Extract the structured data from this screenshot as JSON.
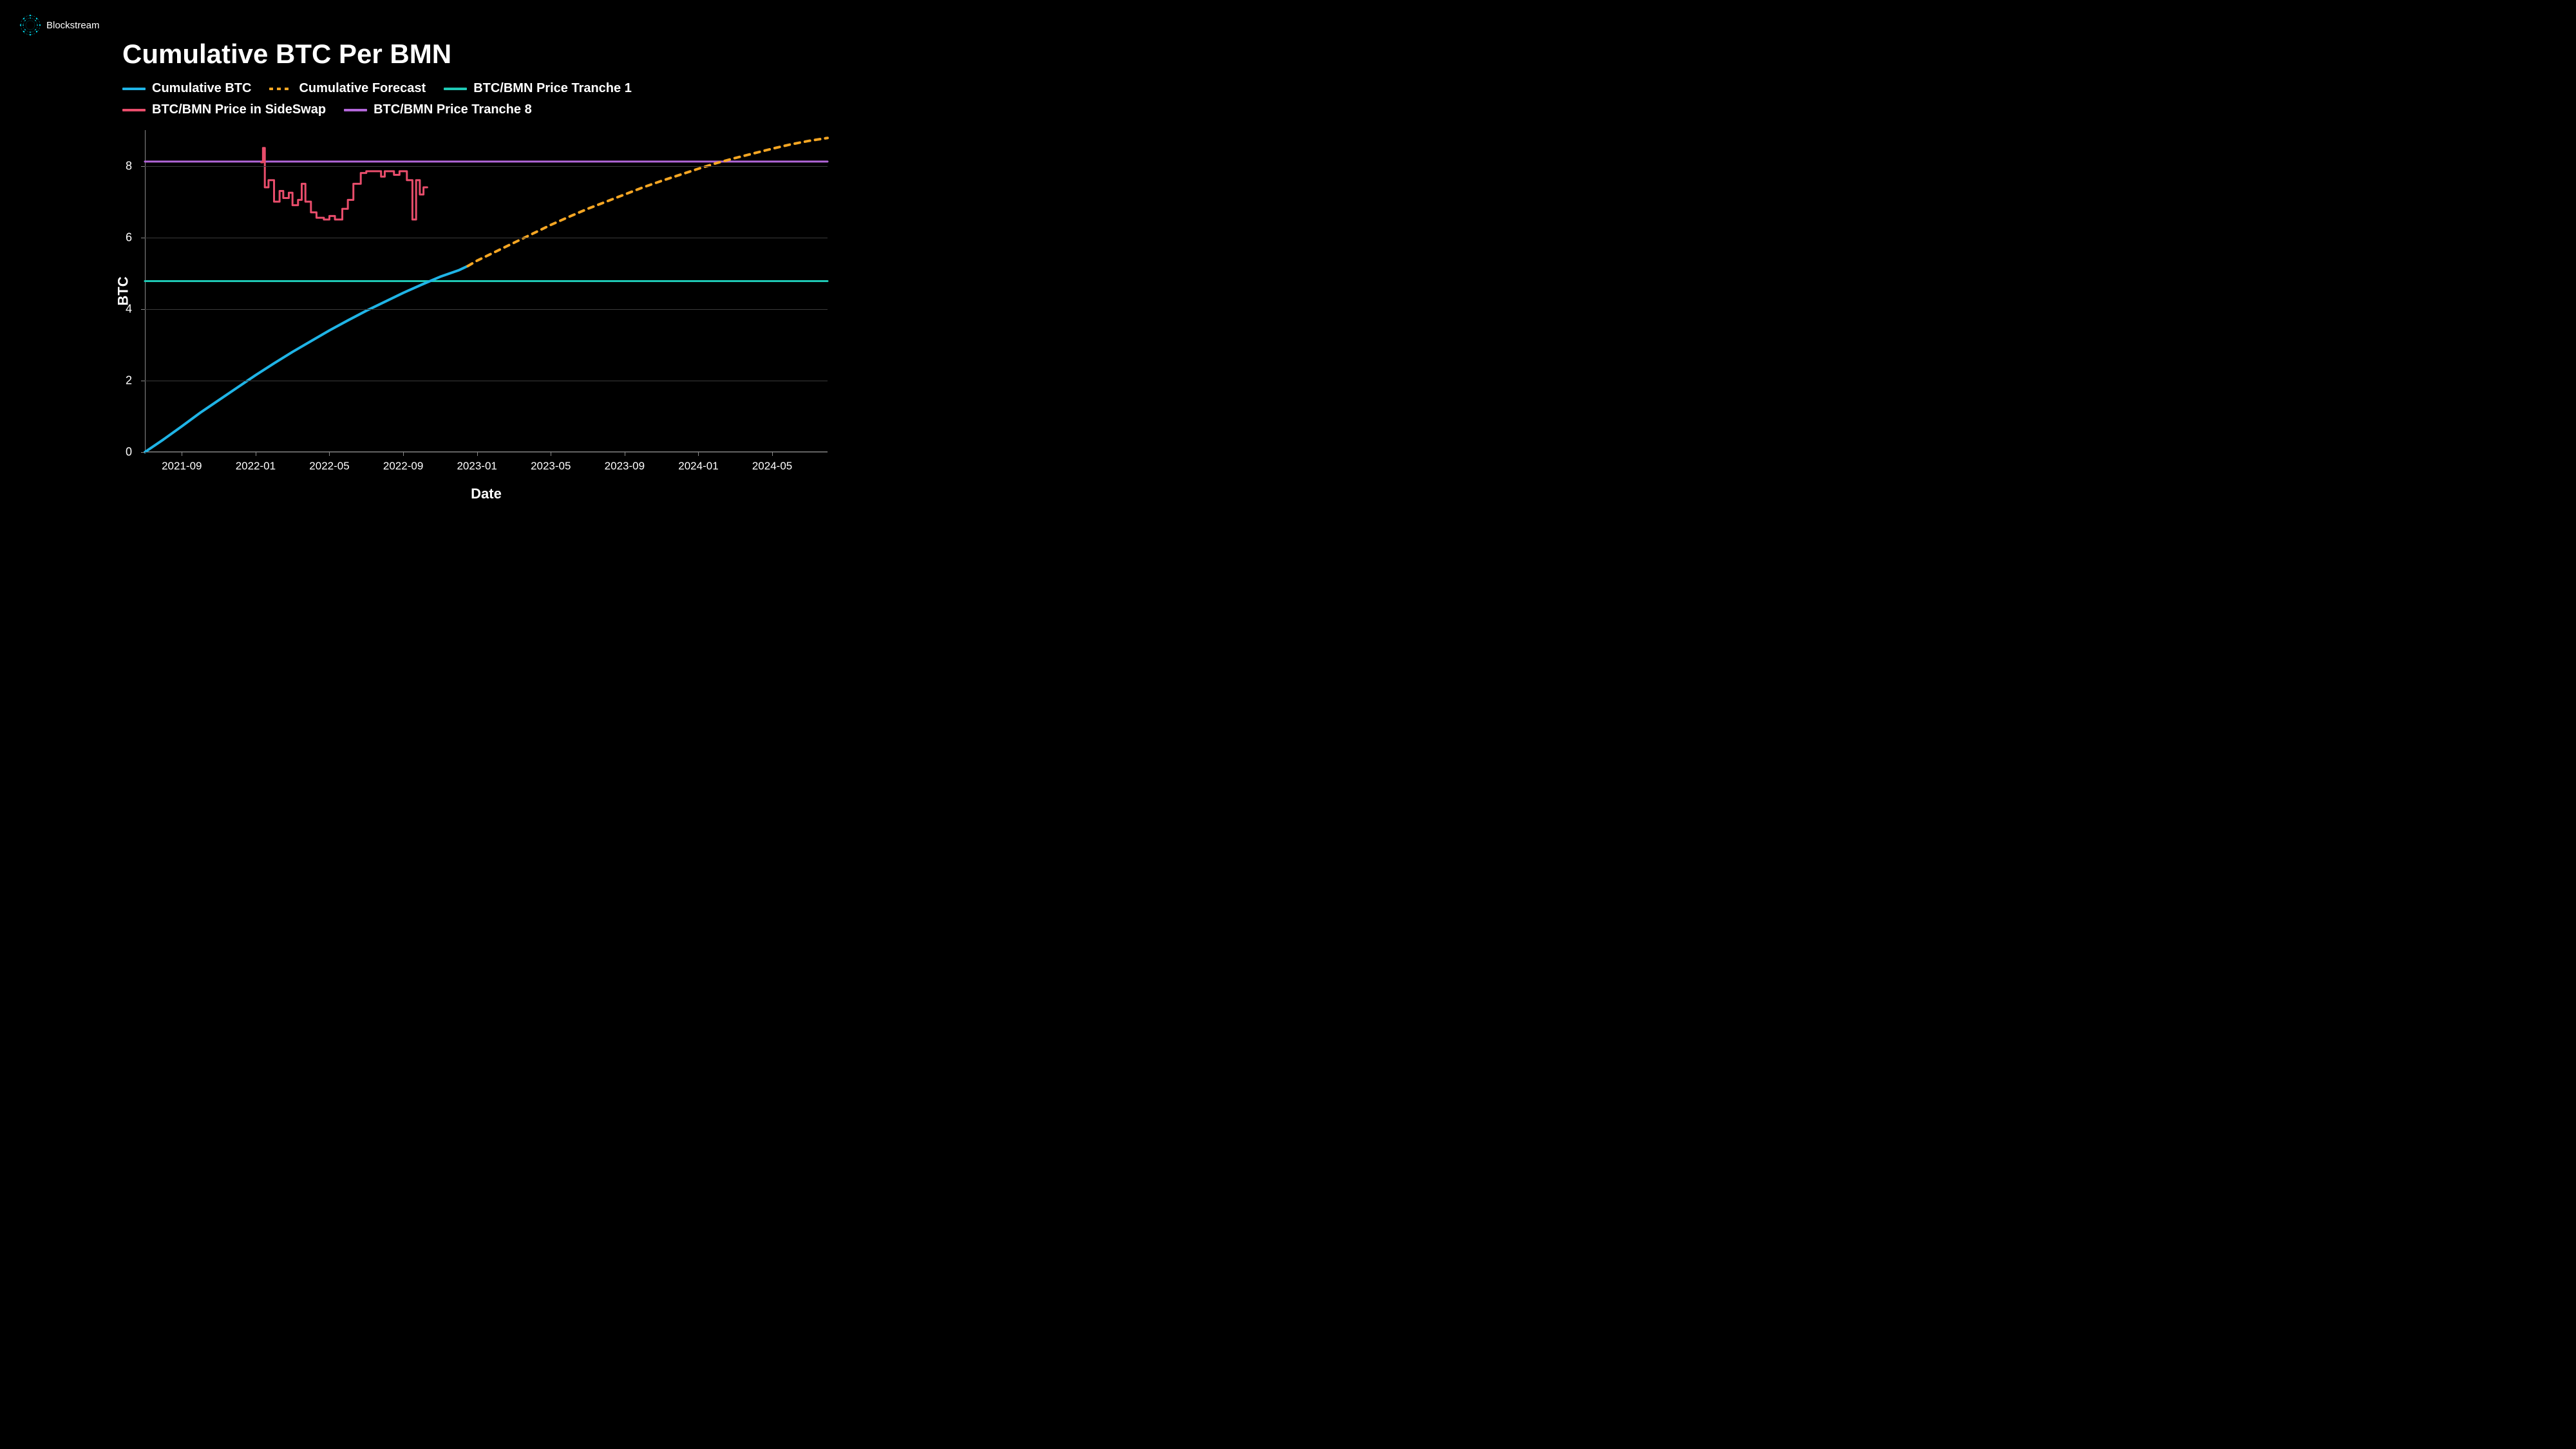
{
  "brand": {
    "name": "Blockstream",
    "logo_color": "#00d4e6"
  },
  "chart": {
    "type": "line",
    "title": "Cumulative BTC Per BMN",
    "title_fontsize": 42,
    "background_color": "#000000",
    "grid_color": "#3a3a3a",
    "axis_color": "#888888",
    "text_color": "#ffffff",
    "ylabel": "BTC",
    "xlabel": "Date",
    "label_fontsize": 22,
    "tick_fontsize": 18,
    "ylim": [
      0,
      9
    ],
    "yticks": [
      0,
      2,
      4,
      6,
      8
    ],
    "xticks": [
      "2021-09",
      "2022-01",
      "2022-05",
      "2022-09",
      "2023-01",
      "2023-05",
      "2023-09",
      "2024-01",
      "2024-05"
    ],
    "x_domain_min": 0,
    "x_domain_max": 37,
    "xtick_positions": [
      2,
      6,
      10,
      14,
      18,
      22,
      26,
      30,
      34
    ],
    "legend_fontsize": 20,
    "series": {
      "cumulative_btc": {
        "label": "Cumulative BTC",
        "color": "#1fb4e6",
        "line_width": 4,
        "dash": "none",
        "points": [
          [
            0,
            0
          ],
          [
            1,
            0.35
          ],
          [
            2,
            0.72
          ],
          [
            3,
            1.1
          ],
          [
            4,
            1.45
          ],
          [
            5,
            1.8
          ],
          [
            6,
            2.15
          ],
          [
            7,
            2.48
          ],
          [
            8,
            2.8
          ],
          [
            9,
            3.1
          ],
          [
            10,
            3.4
          ],
          [
            11,
            3.68
          ],
          [
            12,
            3.95
          ],
          [
            13,
            4.2
          ],
          [
            14,
            4.45
          ],
          [
            15,
            4.68
          ],
          [
            16,
            4.9
          ],
          [
            17,
            5.08
          ],
          [
            17.5,
            5.2
          ]
        ]
      },
      "cumulative_forecast": {
        "label": "Cumulative Forecast",
        "color": "#f5a623",
        "line_width": 4,
        "dash": "8,8",
        "points": [
          [
            17.5,
            5.2
          ],
          [
            18,
            5.35
          ],
          [
            19,
            5.6
          ],
          [
            20,
            5.85
          ],
          [
            21,
            6.1
          ],
          [
            22,
            6.35
          ],
          [
            23,
            6.58
          ],
          [
            24,
            6.8
          ],
          [
            25,
            7.0
          ],
          [
            26,
            7.2
          ],
          [
            27,
            7.4
          ],
          [
            28,
            7.58
          ],
          [
            29,
            7.75
          ],
          [
            30,
            7.92
          ],
          [
            31,
            8.08
          ],
          [
            32,
            8.22
          ],
          [
            33,
            8.35
          ],
          [
            34,
            8.48
          ],
          [
            35,
            8.6
          ],
          [
            36,
            8.7
          ],
          [
            37,
            8.78
          ]
        ]
      },
      "tranche1": {
        "label": "BTC/BMN Price Tranche 1",
        "color": "#1fc9b5",
        "line_width": 3,
        "dash": "none",
        "points": [
          [
            0,
            4.78
          ],
          [
            37,
            4.78
          ]
        ]
      },
      "tranche8": {
        "label": "BTC/BMN Price Tranche 8",
        "color": "#b266d9",
        "line_width": 3,
        "dash": "none",
        "points": [
          [
            0,
            8.12
          ],
          [
            37,
            8.12
          ]
        ]
      },
      "sideswap": {
        "label": "BTC/BMN Price in SideSwap",
        "color": "#e84d6b",
        "line_width": 3,
        "dash": "none",
        "points": [
          [
            6.3,
            8.1
          ],
          [
            6.4,
            8.1
          ],
          [
            6.4,
            8.5
          ],
          [
            6.5,
            8.5
          ],
          [
            6.5,
            7.4
          ],
          [
            6.7,
            7.4
          ],
          [
            6.7,
            7.6
          ],
          [
            7.0,
            7.6
          ],
          [
            7.0,
            7.0
          ],
          [
            7.3,
            7.0
          ],
          [
            7.3,
            7.3
          ],
          [
            7.5,
            7.3
          ],
          [
            7.5,
            7.1
          ],
          [
            7.8,
            7.1
          ],
          [
            7.8,
            7.25
          ],
          [
            8.0,
            7.25
          ],
          [
            8.0,
            6.9
          ],
          [
            8.3,
            6.9
          ],
          [
            8.3,
            7.05
          ],
          [
            8.5,
            7.05
          ],
          [
            8.5,
            7.5
          ],
          [
            8.7,
            7.5
          ],
          [
            8.7,
            7.0
          ],
          [
            9.0,
            7.0
          ],
          [
            9.0,
            6.7
          ],
          [
            9.3,
            6.7
          ],
          [
            9.3,
            6.55
          ],
          [
            9.7,
            6.55
          ],
          [
            9.7,
            6.5
          ],
          [
            10.0,
            6.5
          ],
          [
            10.0,
            6.6
          ],
          [
            10.3,
            6.6
          ],
          [
            10.3,
            6.5
          ],
          [
            10.7,
            6.5
          ],
          [
            10.7,
            6.8
          ],
          [
            11.0,
            6.8
          ],
          [
            11.0,
            7.05
          ],
          [
            11.3,
            7.05
          ],
          [
            11.3,
            7.5
          ],
          [
            11.7,
            7.5
          ],
          [
            11.7,
            7.8
          ],
          [
            12.0,
            7.8
          ],
          [
            12.0,
            7.85
          ],
          [
            12.8,
            7.85
          ],
          [
            12.8,
            7.7
          ],
          [
            13.0,
            7.7
          ],
          [
            13.0,
            7.85
          ],
          [
            13.5,
            7.85
          ],
          [
            13.5,
            7.75
          ],
          [
            13.8,
            7.75
          ],
          [
            13.8,
            7.85
          ],
          [
            14.2,
            7.85
          ],
          [
            14.2,
            7.6
          ],
          [
            14.5,
            7.6
          ],
          [
            14.5,
            6.5
          ],
          [
            14.7,
            6.5
          ],
          [
            14.7,
            7.6
          ],
          [
            14.9,
            7.6
          ],
          [
            14.9,
            7.2
          ],
          [
            15.1,
            7.2
          ],
          [
            15.1,
            7.4
          ],
          [
            15.3,
            7.4
          ]
        ]
      }
    }
  }
}
